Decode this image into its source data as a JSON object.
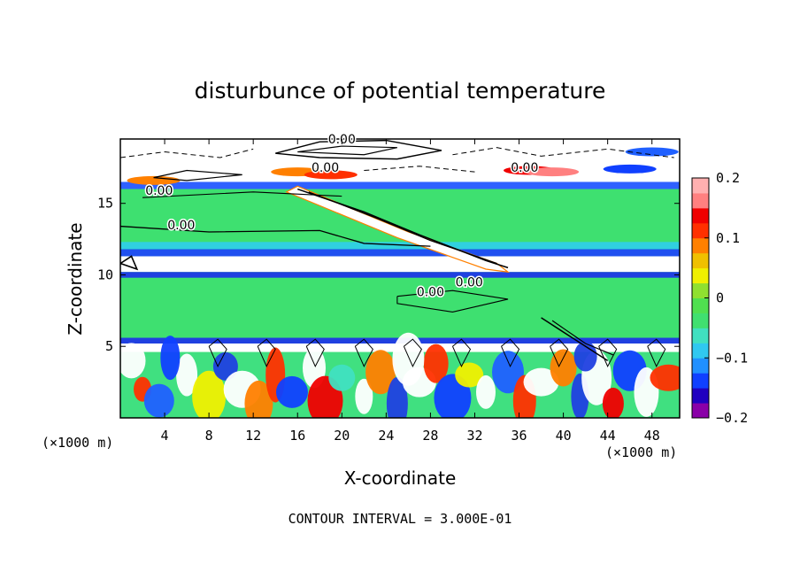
{
  "chart_data": {
    "type": "heatmap",
    "title": "disturbunce of potential temperature",
    "xlabel": "X-coordinate",
    "ylabel": "Z-coordinate",
    "x_unit": "(×1000 m)",
    "z_unit": "(×1000 m)",
    "xlim": [
      0,
      50.5
    ],
    "ylim": [
      0,
      19.5
    ],
    "x_ticks": [
      4,
      8,
      12,
      16,
      20,
      24,
      28,
      32,
      36,
      40,
      44,
      48
    ],
    "y_ticks": [
      5,
      10,
      15
    ],
    "colorbar": {
      "range": [
        -0.2,
        0.2
      ],
      "ticks": [
        0.2,
        0.1,
        0,
        -0.1,
        -0.2
      ],
      "tick_labels": [
        "0.2",
        "0.1",
        "0",
        "−0.1",
        "−0.2"
      ],
      "colors": [
        "#8a00a8",
        "#2000c0",
        "#1040ff",
        "#2090ff",
        "#30c8f0",
        "#40e0c0",
        "#40e070",
        "#50e050",
        "#90e030",
        "#f0f000",
        "#f0c000",
        "#ff8000",
        "#ff3000",
        "#f00000",
        "#ff8080",
        "#ffb0b0"
      ]
    },
    "contour_interval_note": "CONTOUR INTERVAL = 3.000E-01",
    "contour_labels": [
      {
        "text": "0.00",
        "x": 20.0,
        "z": 19.2
      },
      {
        "text": "0.00",
        "x": 18.5,
        "z": 17.2
      },
      {
        "text": "0.00",
        "x": 36.5,
        "z": 17.2
      },
      {
        "text": "0.00",
        "x": 3.5,
        "z": 15.6
      },
      {
        "text": "0.00",
        "x": 5.5,
        "z": 13.2
      },
      {
        "text": "0.00",
        "x": 28.0,
        "z": 8.5
      },
      {
        "text": "0.00",
        "x": 31.5,
        "z": 9.2
      }
    ],
    "bands": [
      {
        "z": [
          0,
          5
        ],
        "pattern": "turbulent mixed, values −0.2 to 0.2"
      },
      {
        "z": [
          5,
          10
        ],
        "pattern": "mostly ~0 (green)"
      },
      {
        "z": [
          10,
          11
        ],
        "pattern": "strong negative/white band"
      },
      {
        "z": [
          11,
          16
        ],
        "pattern": "mostly ~0 (green)"
      },
      {
        "z": [
          16,
          19.5
        ],
        "pattern": "white/out-of-range with contours"
      }
    ]
  }
}
